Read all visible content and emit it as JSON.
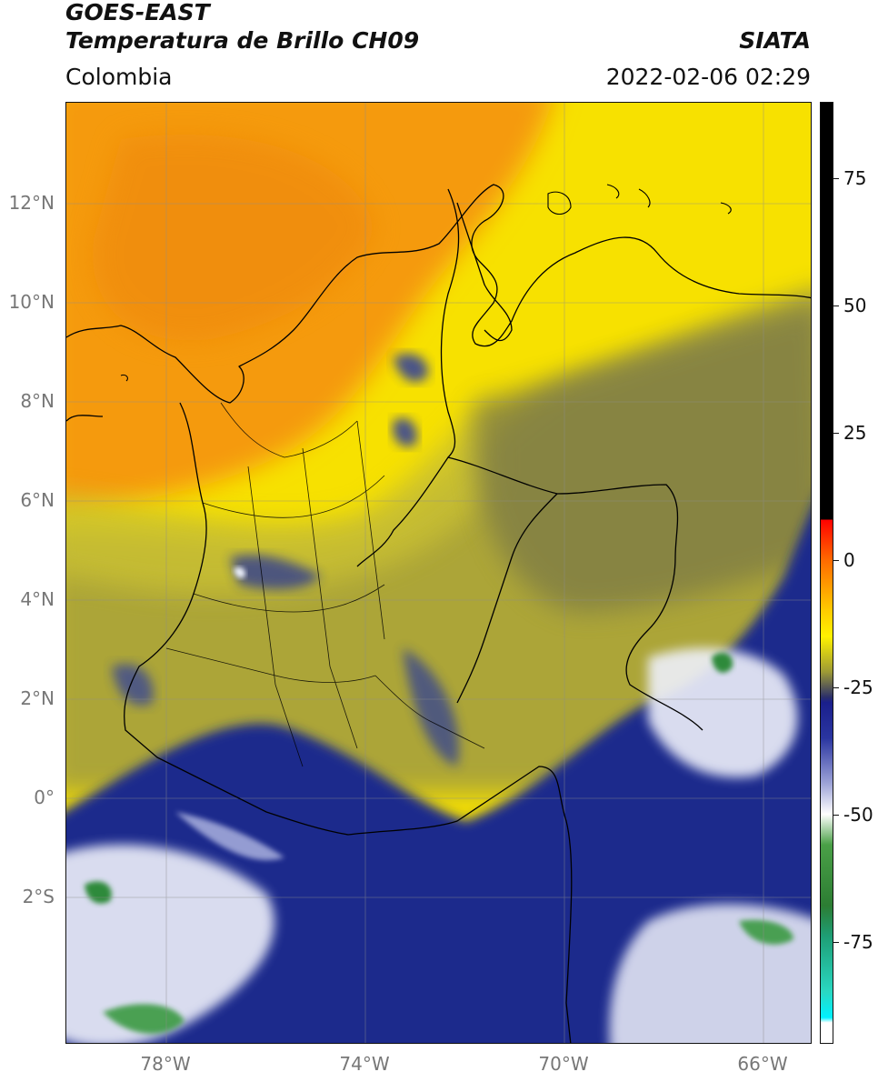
{
  "header": {
    "satellite": "GOES-EAST",
    "product": "Temperatura de Brillo CH09",
    "agency": "SIATA",
    "region": "Colombia",
    "datetime": "2022-02-06 02:29"
  },
  "map": {
    "lat_ticks": [
      "12°N",
      "10°N",
      "8°N",
      "6°N",
      "4°N",
      "2°N",
      "0°",
      "2°S"
    ],
    "lon_ticks": [
      "78°W",
      "74°W",
      "70°W",
      "66°W"
    ],
    "lon_range": [
      -80.0,
      -65.0
    ],
    "lat_range": [
      -5.3,
      14.0
    ],
    "colors": {
      "warm_orange": "#f39a0e",
      "yellow": "#ffea00",
      "olive": "#9c9a3c",
      "navy": "#1a2a8a",
      "white": "#f4f6fb",
      "green": "#2f8a3a",
      "coastline": "#000000",
      "gridline": "#888888"
    }
  },
  "colorbar": {
    "ticks": [
      "75",
      "50",
      "25",
      "0",
      "-25",
      "-50",
      "-75"
    ],
    "tick_values": [
      75,
      50,
      25,
      0,
      -25,
      -50,
      -75
    ],
    "range": [
      -95,
      90
    ],
    "stops": [
      {
        "value": 90,
        "color": "#000000"
      },
      {
        "value": 8,
        "color": "#000000"
      },
      {
        "value": 8,
        "color": "#ff0000"
      },
      {
        "value": 0,
        "color": "#ff6a00"
      },
      {
        "value": -10,
        "color": "#ffcc00"
      },
      {
        "value": -15,
        "color": "#fff200"
      },
      {
        "value": -22,
        "color": "#9d9a35"
      },
      {
        "value": -27,
        "color": "#2b2f6a"
      },
      {
        "value": -28,
        "color": "#1a1f8c"
      },
      {
        "value": -35,
        "color": "#2a35a0"
      },
      {
        "value": -44,
        "color": "#9ea4d8"
      },
      {
        "value": -50,
        "color": "#ffffff"
      },
      {
        "value": -56,
        "color": "#4aa047"
      },
      {
        "value": -68,
        "color": "#2c7d33"
      },
      {
        "value": -74,
        "color": "#1e9e75"
      },
      {
        "value": -85,
        "color": "#2ad8c2"
      },
      {
        "value": -90,
        "color": "#00f2ff"
      },
      {
        "value": -91,
        "color": "#ffffff"
      },
      {
        "value": -95,
        "color": "#ffffff"
      }
    ]
  }
}
